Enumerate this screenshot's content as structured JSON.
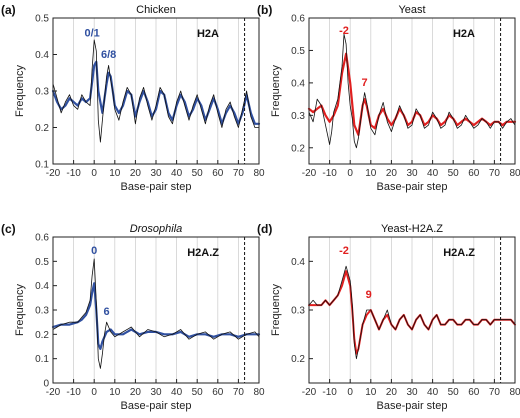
{
  "chart_data": [
    {
      "type": "line",
      "panel_label": "(a)",
      "title": "Chicken",
      "title_italic": false,
      "histone_label": "H2A",
      "xlabel": "Base-pair step",
      "ylabel": "Frequency",
      "xlim": [
        -20,
        80
      ],
      "ylim": [
        0.1,
        0.5
      ],
      "xticks": [
        -20,
        -10,
        0,
        10,
        20,
        30,
        40,
        50,
        60,
        70,
        80
      ],
      "yticks": [
        0.1,
        0.2,
        0.3,
        0.4,
        0.5
      ],
      "ytick_labels": [
        "0.1",
        "0.2",
        "0.3",
        "0.4",
        "0.5"
      ],
      "vertical_grid": [
        -10,
        0,
        10,
        20,
        30,
        40,
        50,
        60,
        70
      ],
      "dashed_line_x": 73,
      "annotations": [
        {
          "text": "0/1",
          "x": -1,
          "y": 0.45
        },
        {
          "text": "6/8",
          "x": 7,
          "y": 0.39
        }
      ],
      "series": [
        {
          "color": "#3050a0",
          "width": 2.2,
          "x": [
            -20,
            -18,
            -16,
            -14,
            -12,
            -10,
            -8,
            -6,
            -4,
            -2,
            0,
            1,
            2,
            4,
            6,
            7,
            8,
            10,
            12,
            14,
            16,
            18,
            20,
            22,
            24,
            26,
            28,
            30,
            32,
            34,
            36,
            38,
            40,
            42,
            44,
            46,
            48,
            50,
            52,
            54,
            56,
            58,
            60,
            62,
            64,
            66,
            68,
            70,
            72,
            74,
            76,
            78,
            80
          ],
          "y": [
            0.3,
            0.27,
            0.25,
            0.26,
            0.28,
            0.27,
            0.26,
            0.28,
            0.27,
            0.28,
            0.37,
            0.38,
            0.3,
            0.24,
            0.32,
            0.35,
            0.34,
            0.26,
            0.24,
            0.26,
            0.3,
            0.29,
            0.23,
            0.27,
            0.3,
            0.27,
            0.23,
            0.25,
            0.3,
            0.29,
            0.24,
            0.22,
            0.26,
            0.29,
            0.27,
            0.23,
            0.25,
            0.28,
            0.26,
            0.22,
            0.25,
            0.28,
            0.25,
            0.21,
            0.24,
            0.26,
            0.24,
            0.21,
            0.24,
            0.29,
            0.24,
            0.21,
            0.21
          ]
        },
        {
          "color": "#111111",
          "width": 0.8,
          "x": [
            -20,
            -18,
            -16,
            -14,
            -12,
            -10,
            -8,
            -6,
            -4,
            -2,
            -1,
            0,
            1,
            2,
            3,
            4,
            6,
            7,
            8,
            9,
            10,
            12,
            14,
            16,
            18,
            20,
            22,
            24,
            26,
            28,
            30,
            32,
            34,
            36,
            38,
            40,
            42,
            44,
            46,
            48,
            50,
            52,
            54,
            56,
            58,
            60,
            62,
            64,
            66,
            68,
            70,
            72,
            74,
            76,
            78,
            80
          ],
          "y": [
            0.32,
            0.28,
            0.24,
            0.27,
            0.29,
            0.26,
            0.25,
            0.29,
            0.27,
            0.26,
            0.36,
            0.44,
            0.41,
            0.22,
            0.16,
            0.22,
            0.34,
            0.37,
            0.33,
            0.3,
            0.25,
            0.22,
            0.27,
            0.31,
            0.29,
            0.21,
            0.28,
            0.31,
            0.26,
            0.22,
            0.26,
            0.31,
            0.29,
            0.23,
            0.21,
            0.27,
            0.3,
            0.26,
            0.22,
            0.26,
            0.29,
            0.25,
            0.21,
            0.26,
            0.29,
            0.24,
            0.2,
            0.25,
            0.27,
            0.23,
            0.2,
            0.25,
            0.3,
            0.23,
            0.2,
            0.2
          ]
        }
      ]
    },
    {
      "type": "line",
      "panel_label": "(b)",
      "title": "Yeast",
      "title_italic": false,
      "histone_label": "H2A",
      "xlabel": "Base-pair step",
      "ylabel": "Frequency",
      "xlim": [
        -20,
        80
      ],
      "ylim": [
        0.15,
        0.6
      ],
      "xticks": [
        -20,
        -10,
        0,
        10,
        20,
        30,
        40,
        50,
        60,
        70,
        80
      ],
      "yticks": [
        0.2,
        0.3,
        0.4,
        0.5,
        0.6
      ],
      "ytick_labels": [
        "0.2",
        "0.3",
        "0.4",
        "0.5",
        "0.6"
      ],
      "vertical_grid": [
        -10,
        0,
        10,
        20,
        30,
        40,
        50,
        60,
        70
      ],
      "dashed_line_x": 73,
      "annotations": [
        {
          "text": "-2",
          "x": -3,
          "y": 0.55
        },
        {
          "text": "7",
          "x": 7,
          "y": 0.39
        }
      ],
      "series": [
        {
          "color": "#e02020",
          "width": 2.2,
          "x": [
            -20,
            -18,
            -16,
            -14,
            -12,
            -10,
            -8,
            -6,
            -4,
            -2,
            0,
            2,
            4,
            6,
            7,
            8,
            10,
            12,
            14,
            16,
            18,
            20,
            22,
            24,
            26,
            28,
            30,
            32,
            34,
            36,
            38,
            40,
            42,
            44,
            46,
            48,
            50,
            52,
            54,
            56,
            58,
            60,
            62,
            64,
            66,
            68,
            70,
            72,
            74,
            76,
            78,
            80
          ],
          "y": [
            0.32,
            0.31,
            0.32,
            0.33,
            0.3,
            0.28,
            0.3,
            0.33,
            0.43,
            0.49,
            0.4,
            0.27,
            0.24,
            0.33,
            0.35,
            0.33,
            0.27,
            0.26,
            0.3,
            0.32,
            0.29,
            0.27,
            0.29,
            0.32,
            0.3,
            0.27,
            0.28,
            0.31,
            0.3,
            0.27,
            0.28,
            0.3,
            0.29,
            0.27,
            0.28,
            0.3,
            0.29,
            0.27,
            0.28,
            0.29,
            0.28,
            0.27,
            0.28,
            0.29,
            0.28,
            0.27,
            0.28,
            0.28,
            0.27,
            0.28,
            0.28,
            0.28
          ]
        },
        {
          "color": "#111111",
          "width": 0.8,
          "x": [
            -20,
            -18,
            -16,
            -14,
            -12,
            -10,
            -9,
            -8,
            -6,
            -4,
            -3,
            -2,
            -1,
            0,
            1,
            2,
            3,
            4,
            6,
            7,
            8,
            10,
            12,
            14,
            16,
            18,
            20,
            22,
            24,
            26,
            28,
            30,
            32,
            34,
            36,
            38,
            40,
            42,
            44,
            46,
            48,
            50,
            52,
            54,
            56,
            58,
            60,
            62,
            64,
            66,
            68,
            70,
            72,
            74,
            76,
            78,
            80
          ],
          "y": [
            0.31,
            0.28,
            0.35,
            0.33,
            0.27,
            0.21,
            0.25,
            0.31,
            0.35,
            0.45,
            0.55,
            0.52,
            0.4,
            0.33,
            0.29,
            0.22,
            0.2,
            0.23,
            0.33,
            0.37,
            0.34,
            0.26,
            0.24,
            0.3,
            0.34,
            0.28,
            0.25,
            0.29,
            0.33,
            0.3,
            0.26,
            0.27,
            0.32,
            0.3,
            0.26,
            0.27,
            0.31,
            0.29,
            0.26,
            0.27,
            0.31,
            0.29,
            0.26,
            0.27,
            0.3,
            0.28,
            0.26,
            0.27,
            0.29,
            0.28,
            0.26,
            0.28,
            0.28,
            0.26,
            0.28,
            0.29,
            0.27
          ]
        }
      ]
    },
    {
      "type": "line",
      "panel_label": "(c)",
      "title": "Drosophila",
      "title_italic": true,
      "histone_label": "H2A.Z",
      "xlabel": "Base-pair step",
      "ylabel": "Frequency",
      "xlim": [
        -20,
        80
      ],
      "ylim": [
        0.0,
        0.6
      ],
      "xticks": [
        -20,
        -10,
        0,
        10,
        20,
        30,
        40,
        50,
        60,
        70,
        80
      ],
      "yticks": [
        0.0,
        0.1,
        0.2,
        0.3,
        0.4,
        0.5,
        0.6
      ],
      "ytick_labels": [
        "0",
        "0.1",
        "0.2",
        "0.3",
        "0.4",
        "0.5",
        "0.6"
      ],
      "vertical_grid": [
        -10,
        0,
        10,
        20,
        30,
        40,
        50,
        60,
        70
      ],
      "dashed_line_x": 73,
      "annotations": [
        {
          "text": "0",
          "x": 0,
          "y": 0.53
        },
        {
          "text": "6",
          "x": 6,
          "y": 0.28
        }
      ],
      "series": [
        {
          "color": "#3050a0",
          "width": 2.2,
          "x": [
            -20,
            -16,
            -12,
            -8,
            -6,
            -4,
            -2,
            -1,
            0,
            1,
            2,
            3,
            4,
            6,
            8,
            10,
            14,
            18,
            22,
            26,
            30,
            34,
            38,
            42,
            46,
            50,
            54,
            58,
            62,
            66,
            70,
            74,
            78,
            80
          ],
          "y": [
            0.23,
            0.24,
            0.24,
            0.25,
            0.26,
            0.28,
            0.32,
            0.37,
            0.41,
            0.3,
            0.16,
            0.14,
            0.17,
            0.21,
            0.22,
            0.2,
            0.2,
            0.22,
            0.2,
            0.21,
            0.21,
            0.2,
            0.2,
            0.21,
            0.19,
            0.2,
            0.2,
            0.19,
            0.2,
            0.2,
            0.19,
            0.2,
            0.2,
            0.2
          ]
        },
        {
          "color": "#111111",
          "width": 0.8,
          "x": [
            -20,
            -16,
            -12,
            -8,
            -6,
            -4,
            -2,
            -1,
            0,
            1,
            2,
            3,
            4,
            5,
            6,
            8,
            10,
            14,
            18,
            22,
            26,
            30,
            34,
            38,
            42,
            46,
            50,
            54,
            58,
            62,
            66,
            70,
            74,
            78,
            80
          ],
          "y": [
            0.22,
            0.24,
            0.25,
            0.25,
            0.27,
            0.29,
            0.34,
            0.44,
            0.51,
            0.33,
            0.1,
            0.06,
            0.12,
            0.2,
            0.25,
            0.21,
            0.19,
            0.21,
            0.23,
            0.19,
            0.22,
            0.21,
            0.19,
            0.2,
            0.22,
            0.18,
            0.2,
            0.21,
            0.18,
            0.2,
            0.21,
            0.18,
            0.2,
            0.21,
            0.19
          ]
        }
      ]
    },
    {
      "type": "line",
      "panel_label": "(d)",
      "title": "Yeast-H2A.Z",
      "title_italic": false,
      "histone_label": "H2A.Z",
      "xlabel": "Base-pair step",
      "ylabel": "Frequency",
      "xlim": [
        -20,
        80
      ],
      "ylim": [
        0.15,
        0.45
      ],
      "xticks": [
        -20,
        -10,
        0,
        10,
        20,
        30,
        40,
        50,
        60,
        70,
        80
      ],
      "yticks": [
        0.2,
        0.3,
        0.4
      ],
      "ytick_labels": [
        "0.2",
        "0.3",
        "0.4"
      ],
      "vertical_grid": [
        -10,
        0,
        10,
        20,
        30,
        40,
        50,
        60,
        70
      ],
      "dashed_line_x": 73,
      "annotations": [
        {
          "text": "-2",
          "x": -3,
          "y": 0.415
        },
        {
          "text": "9",
          "x": 9,
          "y": 0.325
        }
      ],
      "series": [
        {
          "color": "#e02020",
          "width": 2.0,
          "x": [
            -20,
            -18,
            -16,
            -14,
            -12,
            -10,
            -8,
            -6,
            -4,
            -2,
            0,
            1,
            2,
            3,
            4,
            6,
            8,
            10,
            12,
            14,
            16,
            18,
            20,
            22,
            24,
            26,
            28,
            30,
            32,
            34,
            36,
            38,
            40,
            42,
            44,
            46,
            48,
            50,
            52,
            54,
            56,
            58,
            60,
            62,
            64,
            66,
            68,
            70,
            72,
            74,
            76,
            78,
            80
          ],
          "y": [
            0.31,
            0.31,
            0.31,
            0.31,
            0.32,
            0.31,
            0.32,
            0.33,
            0.35,
            0.38,
            0.35,
            0.3,
            0.24,
            0.21,
            0.22,
            0.27,
            0.29,
            0.3,
            0.28,
            0.26,
            0.28,
            0.29,
            0.27,
            0.26,
            0.28,
            0.29,
            0.27,
            0.26,
            0.28,
            0.29,
            0.27,
            0.26,
            0.28,
            0.29,
            0.27,
            0.27,
            0.28,
            0.28,
            0.27,
            0.27,
            0.28,
            0.28,
            0.27,
            0.27,
            0.28,
            0.28,
            0.27,
            0.28,
            0.28,
            0.28,
            0.28,
            0.28,
            0.27
          ]
        },
        {
          "color": "#111111",
          "width": 0.8,
          "x": [
            -20,
            -18,
            -16,
            -14,
            -12,
            -10,
            -8,
            -6,
            -4,
            -2,
            0,
            1,
            2,
            3,
            4,
            6,
            8,
            10,
            12,
            14,
            16,
            18,
            20,
            22,
            24,
            26,
            28,
            30,
            32,
            34,
            36,
            38,
            40,
            42,
            44,
            46,
            48,
            50,
            52,
            54,
            56,
            58,
            60,
            62,
            64,
            66,
            68,
            70,
            72,
            74,
            76,
            78,
            80
          ],
          "y": [
            0.31,
            0.32,
            0.31,
            0.31,
            0.32,
            0.31,
            0.32,
            0.33,
            0.36,
            0.39,
            0.36,
            0.31,
            0.23,
            0.2,
            0.22,
            0.27,
            0.3,
            0.3,
            0.28,
            0.26,
            0.28,
            0.3,
            0.27,
            0.26,
            0.28,
            0.29,
            0.27,
            0.26,
            0.28,
            0.29,
            0.27,
            0.26,
            0.28,
            0.29,
            0.27,
            0.27,
            0.28,
            0.28,
            0.27,
            0.27,
            0.28,
            0.28,
            0.27,
            0.27,
            0.28,
            0.28,
            0.27,
            0.28,
            0.28,
            0.28,
            0.28,
            0.28,
            0.27
          ]
        }
      ]
    }
  ]
}
